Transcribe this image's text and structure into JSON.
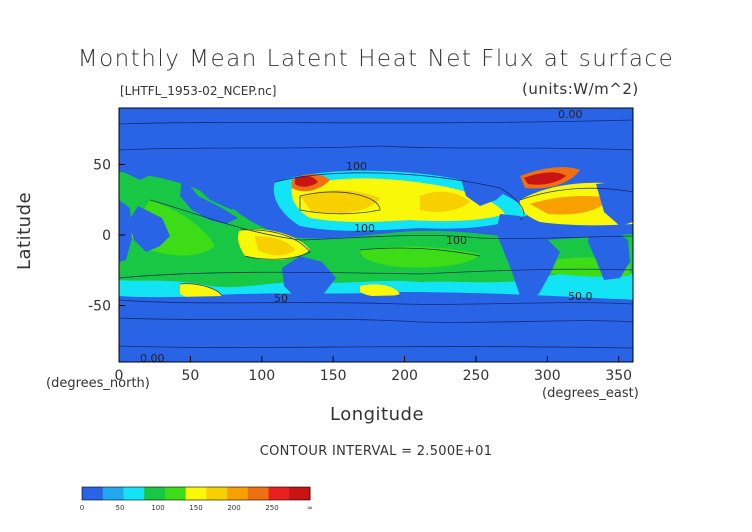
{
  "chart_data": {
    "type": "heatmap",
    "title": "Monthly Mean Latent Heat Net Flux at surface",
    "file_label": "[LHTFL_1953-02_NCEP.nc]",
    "units_label": "(units:W/m^2)",
    "xlabel": "Longitude",
    "xlabel_unit": "(degrees_east)",
    "ylabel": "Latitude",
    "ylabel_unit": "(degrees_north)",
    "xlim": [
      0,
      360
    ],
    "ylim": [
      -90,
      90
    ],
    "x_ticks": [
      "0",
      "50",
      "100",
      "150",
      "200",
      "250",
      "300",
      "350"
    ],
    "y_ticks": [
      "50",
      "0",
      "-50"
    ],
    "contour_interval": "CONTOUR INTERVAL = 2.500E+01",
    "contour_labels": [
      "0.00",
      "100",
      "100",
      "100",
      "50",
      "50.0",
      "0.00"
    ],
    "colorbar": {
      "ticks": [
        "0",
        "50",
        "100",
        "150",
        "200",
        "250",
        "∞"
      ],
      "colors": [
        "#2a64e6",
        "#1fa8f0",
        "#12e4f6",
        "#18c844",
        "#3cdc16",
        "#f8f808",
        "#f8d000",
        "#f8a000",
        "#f07010",
        "#e82020",
        "#c81414"
      ]
    }
  }
}
